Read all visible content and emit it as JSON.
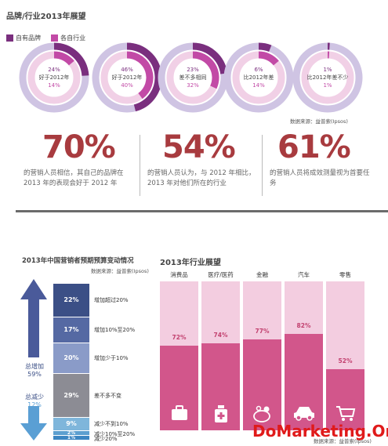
{
  "header": {
    "title": "品牌/行业2013年展望"
  },
  "legend": [
    {
      "label": "自有品牌",
      "color": "#7a2f7e"
    },
    {
      "label": "各自行业",
      "color": "#c24aa6"
    }
  ],
  "donuts": [
    {
      "outer_pct": "24%",
      "label": "好于2012年",
      "inner_pct": "14%",
      "outer_value": 24,
      "inner_value": 14
    },
    {
      "outer_pct": "46%",
      "label": "好于2012年",
      "inner_pct": "40%",
      "outer_value": 46,
      "inner_value": 40
    },
    {
      "outer_pct": "23%",
      "label": "差不多相同",
      "inner_pct": "32%",
      "outer_value": 23,
      "inner_value": 32
    },
    {
      "outer_pct": "6%",
      "label": "比2012年差",
      "inner_pct": "14%",
      "outer_value": 6,
      "inner_value": 14
    },
    {
      "outer_pct": "1%",
      "label": "比2012年差不少",
      "inner_pct": "1%",
      "outer_value": 1,
      "inner_value": 1
    }
  ],
  "donut_source": "数据来源：益普索(Ipsos)",
  "stats": [
    {
      "value": "70%",
      "text": "的营销人员相信，其自己的品牌在2013 年的表现会好于 2012 年"
    },
    {
      "value": "54%",
      "text": "的营销人员认为，与 2012 年相比，2013 年对他们所在的行业"
    },
    {
      "value": "61%",
      "text": "的营销人员将成效测量视为首要任务"
    }
  ],
  "budget": {
    "title": "2013年中国营销者预期预算变动情况",
    "source": "数据来源：益普索(Ipsos)",
    "increase_label": "总增加",
    "increase_value": "59%",
    "decrease_label": "总减少",
    "decrease_value": "12%"
  },
  "industry": {
    "title": "2013年行业展望",
    "source": "数据来源：益普索(Ipsos)"
  },
  "watermark": "DoMarketing.Org",
  "chart_data": [
    {
      "type": "bar",
      "title": "2013年中国营销者预期预算变动情况",
      "categories": [
        "增加超过20%",
        "增加10%至20%",
        "增加少于10%",
        "差不多不变",
        "减少不到10%",
        "减少10%至20%",
        "减少20%"
      ],
      "values": [
        22,
        17,
        20,
        29,
        9,
        2,
        1
      ],
      "labels": [
        "22%",
        "17%",
        "20%",
        "29%",
        "9%",
        "2%",
        "1%"
      ],
      "colors": [
        "#3b4f86",
        "#5569a3",
        "#8a9bc8",
        "#8c8c94",
        "#7fb6db",
        "#5c9fd0",
        "#3d86c2"
      ]
    },
    {
      "type": "bar",
      "title": "2013年行业展望",
      "categories": [
        "消费品",
        "医疗/医药",
        "金融",
        "汽车",
        "零售"
      ],
      "values": [
        72,
        74,
        77,
        82,
        52
      ],
      "labels": [
        "72%",
        "74%",
        "77%",
        "82%",
        "52%"
      ],
      "icons": [
        "briefcase-icon",
        "medicine-bottle-icon",
        "piggy-bank-icon",
        "car-icon",
        "shopping-cart-icon"
      ],
      "ylim": [
        0,
        100
      ]
    }
  ]
}
